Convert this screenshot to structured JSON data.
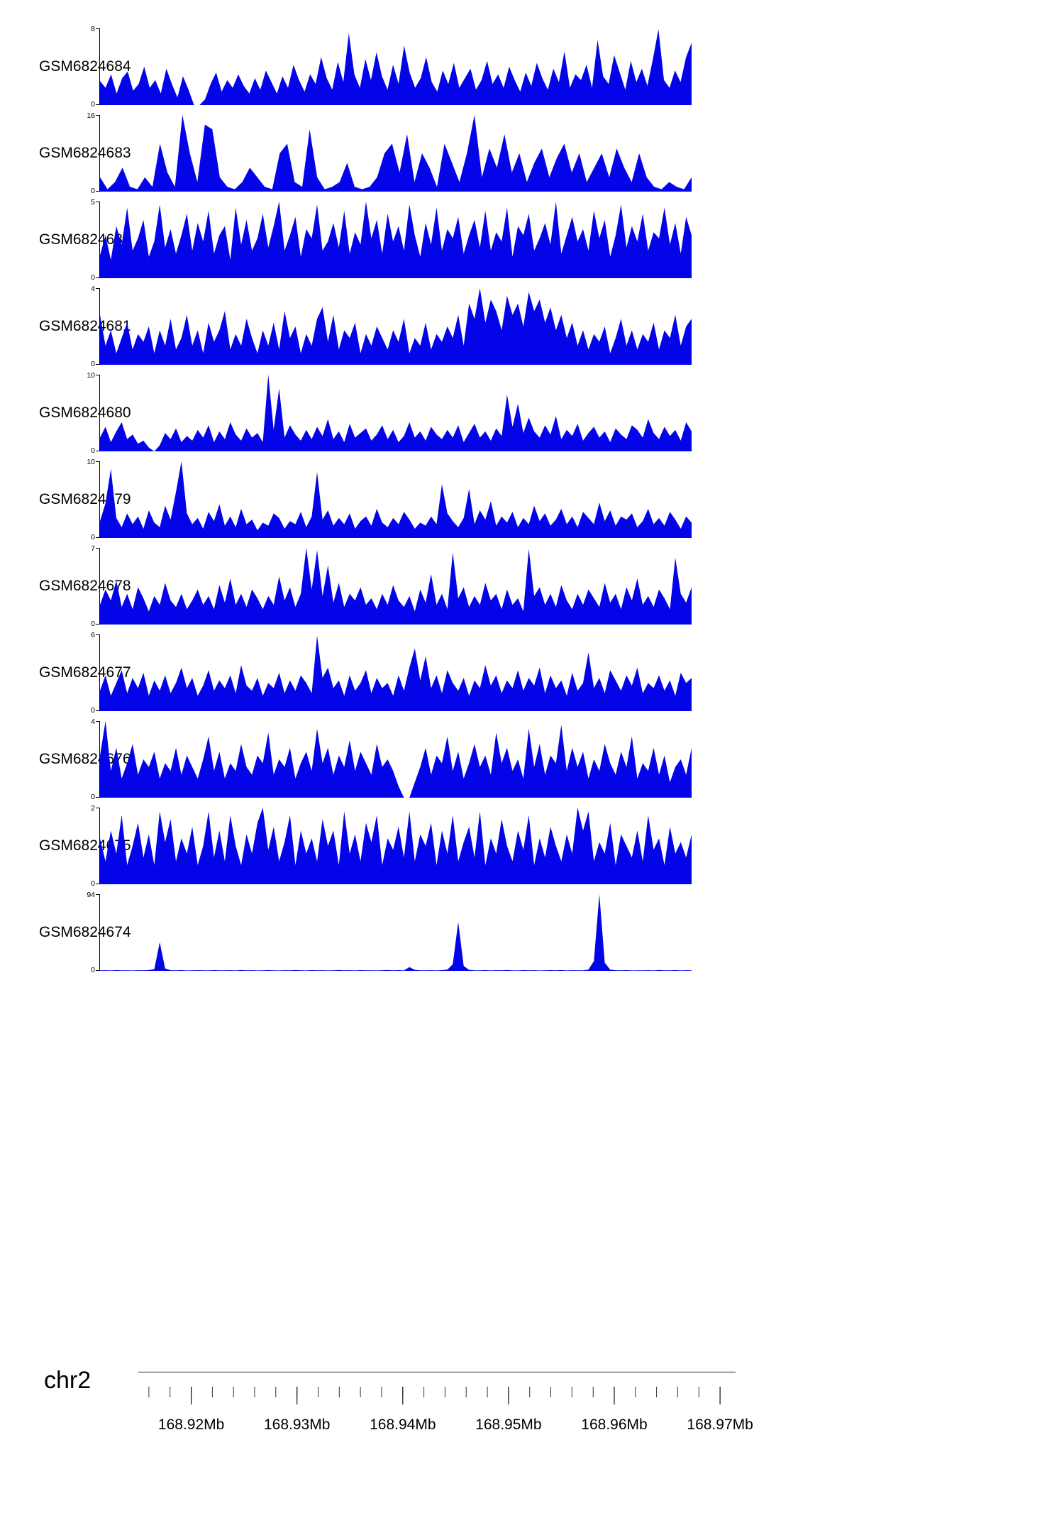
{
  "page": {
    "background": "#ffffff"
  },
  "chart_data": {
    "type": "area",
    "title": "",
    "fill_color": "#0404e8",
    "x_axis": {
      "chromosome": "chr2",
      "start_mb": 168.915,
      "end_mb": 168.971,
      "unit": "Mb",
      "ticks": [
        {
          "mb": 168.92,
          "label": "168.92Mb"
        },
        {
          "mb": 168.93,
          "label": "168.93Mb"
        },
        {
          "mb": 168.94,
          "label": "168.94Mb"
        },
        {
          "mb": 168.95,
          "label": "168.95Mb"
        },
        {
          "mb": 168.96,
          "label": "168.96Mb"
        },
        {
          "mb": 168.97,
          "label": "168.97Mb"
        }
      ],
      "minor_ticks": {
        "start_mb": 168.916,
        "end_mb": 168.97,
        "step_mb": 0.002
      }
    },
    "tracks": [
      {
        "label": "GSM6824684",
        "ymin": 0,
        "ymax": 8,
        "values": [
          2.5,
          1.8,
          3.2,
          1.2,
          2.8,
          3.5,
          1.5,
          2.2,
          4,
          1.8,
          2.6,
          1.2,
          3.8,
          2.2,
          0.8,
          3,
          1.6,
          0,
          0,
          0.6,
          2.2,
          3.4,
          1.4,
          2.6,
          1.8,
          3.2,
          2,
          1.2,
          2.8,
          1.6,
          3.6,
          2.4,
          1.2,
          3,
          1.8,
          4.2,
          2.6,
          1.4,
          3.2,
          2.2,
          5,
          2.8,
          1.6,
          4.5,
          2.4,
          7.5,
          3.2,
          1.8,
          4.8,
          2.6,
          5.5,
          3,
          1.6,
          4.2,
          2.2,
          6.2,
          3.4,
          1.8,
          2.8,
          5,
          2.4,
          1.4,
          3.6,
          2.2,
          4.4,
          1.8,
          2.8,
          3.8,
          1.6,
          2.6,
          4.6,
          2.2,
          3.2,
          1.8,
          4,
          2.6,
          1.4,
          3.4,
          2,
          4.4,
          2.8,
          1.6,
          3.8,
          2.4,
          5.6,
          1.8,
          3.2,
          2.6,
          4.2,
          1.8,
          6.8,
          3,
          2.2,
          5.2,
          3.4,
          1.6,
          4.6,
          2.4,
          3.8,
          2,
          4.8,
          7.9,
          2.6,
          1.8,
          3.6,
          2.4,
          5,
          6.5
        ]
      },
      {
        "label": "GSM6824683",
        "ymin": 0,
        "ymax": 16,
        "values": [
          3,
          0.5,
          2,
          5,
          1,
          0.5,
          3,
          1,
          10,
          4,
          1,
          16,
          8,
          2,
          14,
          13,
          3,
          1,
          0.5,
          2,
          5,
          3,
          1,
          0.5,
          8,
          10,
          2,
          1,
          13,
          3,
          0.5,
          1,
          2,
          6,
          1,
          0.5,
          1,
          3,
          8,
          10,
          4,
          12,
          2,
          8,
          5,
          1,
          10,
          6,
          2,
          8,
          16,
          3,
          9,
          5,
          12,
          4,
          8,
          2,
          6,
          9,
          3,
          7,
          10,
          4,
          8,
          2,
          5,
          8,
          3,
          9,
          5,
          2,
          8,
          3,
          1,
          0.5,
          2,
          1,
          0.5,
          3
        ]
      },
      {
        "label": "GSM6824682",
        "ymin": 0,
        "ymax": 5,
        "values": [
          1.5,
          2.8,
          1.2,
          3.4,
          2.2,
          4.6,
          1.8,
          2.6,
          3.8,
          1.4,
          2.4,
          4.8,
          2,
          3.2,
          1.6,
          2.8,
          4.2,
          1.8,
          3.6,
          2.4,
          4.4,
          1.6,
          2.8,
          3.4,
          1.2,
          4.6,
          2.2,
          3.8,
          1.8,
          2.6,
          4.2,
          2,
          3.4,
          5,
          1.8,
          2.8,
          4,
          1.4,
          3.2,
          2.6,
          4.8,
          1.8,
          2.4,
          3.6,
          2,
          4.4,
          1.6,
          3,
          2.2,
          5,
          2.6,
          3.8,
          1.6,
          4.2,
          2.4,
          3.4,
          1.8,
          4.8,
          2.8,
          1.4,
          3.6,
          2.2,
          4.6,
          1.8,
          3.2,
          2.6,
          4,
          1.6,
          2.8,
          3.8,
          2,
          4.4,
          1.8,
          3,
          2.4,
          4.6,
          1.4,
          3.4,
          2.8,
          4.2,
          1.8,
          2.6,
          3.6,
          2.2,
          5,
          1.6,
          2.8,
          4,
          2.4,
          3.2,
          1.8,
          4.4,
          2.6,
          3.8,
          1.4,
          2.8,
          4.8,
          2,
          3.4,
          2.4,
          4.2,
          1.8,
          3,
          2.6,
          4.6,
          2.2,
          3.6,
          1.6,
          4,
          2.8
        ]
      },
      {
        "label": "GSM6824681",
        "ymin": 0,
        "ymax": 4,
        "values": [
          2.6,
          1,
          1.8,
          0.6,
          1.4,
          2.2,
          0.8,
          1.6,
          1.2,
          2,
          0.6,
          1.8,
          1,
          2.4,
          0.8,
          1.4,
          2.6,
          1,
          1.8,
          0.6,
          2.2,
          1.2,
          1.8,
          2.8,
          0.8,
          1.6,
          1,
          2.4,
          1.4,
          0.6,
          1.8,
          1,
          2.2,
          0.8,
          2.8,
          1.4,
          2,
          0.6,
          1.6,
          1,
          2.4,
          3,
          1.2,
          2.6,
          0.8,
          1.8,
          1.4,
          2.2,
          0.6,
          1.6,
          1,
          2,
          1.4,
          0.8,
          1.8,
          1.2,
          2.4,
          0.6,
          1.4,
          1,
          2.2,
          0.8,
          1.6,
          1.2,
          2,
          1.4,
          2.6,
          1,
          3.2,
          2.4,
          4,
          2.2,
          3.4,
          2.8,
          1.8,
          3.6,
          2.6,
          3.2,
          2,
          3.8,
          2.8,
          3.4,
          2.2,
          3,
          1.8,
          2.6,
          1.4,
          2.2,
          1,
          1.8,
          0.8,
          1.6,
          1.2,
          2,
          0.6,
          1.4,
          2.4,
          1,
          1.8,
          0.8,
          1.6,
          1.2,
          2.2,
          0.8,
          1.8,
          1.4,
          2.6,
          1,
          2,
          2.4
        ]
      },
      {
        "label": "GSM6824680",
        "ymin": 0,
        "ymax": 10,
        "values": [
          1.8,
          3.2,
          1.2,
          2.6,
          3.8,
          1.6,
          2.2,
          1,
          1.4,
          0.5,
          0,
          0.8,
          2.4,
          1.6,
          3,
          1.2,
          2,
          1.4,
          2.8,
          1.8,
          3.4,
          1.2,
          2.6,
          1.6,
          3.8,
          2.2,
          1.4,
          3,
          1.8,
          2.4,
          1.2,
          10,
          2.8,
          8.2,
          1.8,
          3.4,
          2.2,
          1.4,
          2.8,
          1.6,
          3.2,
          2,
          4.2,
          1.6,
          2.6,
          1.2,
          3.6,
          1.8,
          2.4,
          3,
          1.4,
          2.2,
          3.4,
          1.6,
          2.8,
          1.2,
          2,
          3.8,
          1.8,
          2.6,
          1.4,
          3.2,
          2.2,
          1.6,
          2.8,
          1.8,
          3.4,
          1.2,
          2.4,
          3.6,
          1.8,
          2.6,
          1.4,
          3,
          2,
          7.4,
          3.2,
          6.2,
          2.4,
          4.4,
          2.6,
          1.8,
          3.4,
          2.2,
          4.6,
          1.6,
          2.8,
          2,
          3.6,
          1.4,
          2.4,
          3.2,
          1.8,
          2.6,
          1.2,
          3,
          2.2,
          1.6,
          3.4,
          2.8,
          1.8,
          4.2,
          2.4,
          1.6,
          3.2,
          2,
          2.8,
          1.4,
          3.8,
          2.6
        ]
      },
      {
        "label": "GSM6824679",
        "ymin": 0,
        "ymax": 10,
        "values": [
          2.2,
          4.5,
          9,
          2.6,
          1.4,
          3.2,
          1.8,
          2.8,
          1.2,
          3.6,
          2,
          1.4,
          4.2,
          2.4,
          6,
          10,
          3.2,
          1.8,
          2.6,
          1.2,
          3.4,
          2.2,
          4.4,
          1.6,
          2.8,
          1.4,
          3.8,
          1.8,
          2.4,
          1,
          2,
          1.6,
          3.2,
          2.6,
          1.2,
          2.2,
          1.8,
          3.4,
          1.4,
          2.8,
          8.6,
          2.4,
          3.6,
          1.6,
          2.6,
          1.8,
          3.2,
          1.2,
          2.2,
          2.8,
          1.6,
          3.8,
          2,
          1.4,
          2.6,
          1.8,
          3.4,
          2.4,
          1.2,
          2,
          1.6,
          2.8,
          1.8,
          7,
          3.2,
          2.2,
          1.4,
          2.6,
          6.4,
          1.8,
          3.6,
          2.4,
          4.8,
          1.6,
          2.8,
          2,
          3.4,
          1.4,
          2.6,
          1.8,
          4.2,
          2.2,
          3.2,
          1.6,
          2.4,
          3.8,
          1.8,
          2.8,
          1.4,
          3.4,
          2.6,
          1.8,
          4.6,
          2.2,
          3.6,
          1.6,
          2.8,
          2.4,
          3.2,
          1.4,
          2.2,
          3.8,
          1.8,
          2.6,
          1.6,
          3.4,
          2.4,
          1.2,
          2.8,
          2
        ]
      },
      {
        "label": "GSM6824678",
        "ymin": 0,
        "ymax": 7,
        "values": [
          1.8,
          3.2,
          2.2,
          4,
          1.6,
          2.8,
          1.4,
          3.4,
          2.4,
          1.2,
          2.6,
          1.8,
          3.8,
          2.2,
          1.6,
          2.8,
          1.4,
          2.2,
          3.2,
          1.8,
          2.6,
          1.4,
          3.6,
          2,
          4.2,
          1.8,
          2.8,
          1.6,
          3.2,
          2.4,
          1.4,
          2.6,
          1.8,
          4.4,
          2.2,
          3.4,
          1.6,
          2.8,
          7,
          3.2,
          6.8,
          2.6,
          5.4,
          2,
          3.8,
          1.6,
          2.8,
          2.2,
          3.4,
          1.8,
          2.4,
          1.4,
          2.8,
          1.8,
          3.6,
          2.2,
          1.6,
          2.6,
          1.2,
          3.2,
          2,
          4.6,
          1.8,
          2.8,
          1.4,
          6.6,
          2.4,
          3.4,
          1.6,
          2.6,
          1.8,
          3.8,
          2.2,
          2.8,
          1.4,
          3.2,
          1.8,
          2.4,
          1.2,
          6.9,
          2.6,
          3.4,
          1.8,
          2.8,
          1.6,
          3.6,
          2.2,
          1.4,
          2.8,
          1.8,
          3.2,
          2.4,
          1.6,
          3.8,
          2,
          2.8,
          1.4,
          3.4,
          2.2,
          4.2,
          1.8,
          2.6,
          1.6,
          3.2,
          2.4,
          1.4,
          6.1,
          2.8,
          2,
          3.4
        ]
      },
      {
        "label": "GSM6824677",
        "ymin": 0,
        "ymax": 6,
        "values": [
          1.6,
          2.8,
          1.2,
          2.2,
          3.2,
          1.4,
          2.6,
          1.8,
          3,
          1.2,
          2.4,
          1.6,
          2.8,
          1.4,
          2.2,
          3.4,
          1.8,
          2.6,
          1.2,
          2,
          3.2,
          1.6,
          2.4,
          1.8,
          2.8,
          1.4,
          3.6,
          2,
          1.6,
          2.6,
          1.2,
          2.2,
          1.8,
          3,
          1.4,
          2.4,
          1.6,
          2.8,
          2.2,
          1.4,
          5.9,
          2.6,
          3.4,
          1.8,
          2.4,
          1.2,
          2.8,
          1.6,
          2.2,
          3.2,
          1.4,
          2.6,
          1.8,
          2.2,
          1.2,
          2.8,
          1.6,
          3.4,
          4.9,
          2.4,
          4.3,
          1.8,
          2.8,
          1.4,
          3.2,
          2.2,
          1.6,
          2.6,
          1.2,
          2.4,
          1.8,
          3.6,
          2,
          2.8,
          1.4,
          2.4,
          1.8,
          3.2,
          1.6,
          2.6,
          2,
          3.4,
          1.4,
          2.8,
          1.8,
          2.4,
          1.2,
          3,
          1.6,
          2.2,
          4.6,
          1.8,
          2.6,
          1.4,
          3.2,
          2.4,
          1.6,
          2.8,
          2,
          3.4,
          1.4,
          2.2,
          1.8,
          2.8,
          1.6,
          2.4,
          1.2,
          3,
          2.2,
          2.6
        ]
      },
      {
        "label": "GSM6824676",
        "ymin": 0,
        "ymax": 4,
        "values": [
          2.2,
          4,
          1.4,
          2.6,
          1,
          1.8,
          2.8,
          1.2,
          2,
          1.6,
          2.4,
          1,
          1.8,
          1.4,
          2.6,
          1.2,
          2.2,
          1.6,
          1,
          2,
          3.2,
          1.4,
          2.4,
          1,
          1.8,
          1.4,
          2.8,
          1.6,
          1.2,
          2.2,
          1.8,
          3.4,
          1.2,
          2,
          1.6,
          2.6,
          1,
          1.8,
          2.4,
          1.4,
          3.6,
          1.8,
          2.6,
          1.2,
          2.2,
          1.6,
          3,
          1.4,
          2.4,
          1.8,
          1.2,
          2.8,
          1.6,
          2,
          1.4,
          0.6,
          0,
          0,
          0.8,
          1.6,
          2.6,
          1.2,
          2.2,
          1.8,
          3.2,
          1.4,
          2.4,
          1,
          1.8,
          2.8,
          1.6,
          2.2,
          1.2,
          3.4,
          1.8,
          2.6,
          1.4,
          2,
          1,
          3.6,
          1.6,
          2.8,
          1.2,
          2.2,
          1.8,
          3.8,
          1.4,
          2.6,
          1.6,
          2.4,
          1,
          2,
          1.4,
          2.8,
          1.8,
          1.2,
          2.4,
          1.6,
          3.2,
          1,
          1.8,
          1.4,
          2.6,
          1.2,
          2.2,
          0.8,
          1.6,
          2,
          1.2,
          2.6
        ]
      },
      {
        "label": "GSM6824675",
        "ymin": 0,
        "ymax": 2,
        "values": [
          1.2,
          0.6,
          1.4,
          0.8,
          1.8,
          0.5,
          1,
          1.6,
          0.7,
          1.3,
          0.5,
          1.9,
          1.1,
          1.7,
          0.6,
          1.2,
          0.8,
          1.5,
          0.5,
          1,
          1.9,
          0.7,
          1.4,
          0.6,
          1.8,
          1,
          0.5,
          1.3,
          0.8,
          1.6,
          2,
          0.9,
          1.5,
          0.6,
          1.1,
          1.8,
          0.5,
          1.4,
          0.8,
          1.2,
          0.6,
          1.7,
          1,
          1.4,
          0.5,
          1.9,
          0.8,
          1.3,
          0.6,
          1.6,
          1.1,
          1.8,
          0.5,
          1.2,
          0.9,
          1.5,
          0.7,
          1.9,
          0.6,
          1.3,
          1,
          1.6,
          0.5,
          1.4,
          0.8,
          1.8,
          0.6,
          1.1,
          1.5,
          0.7,
          1.9,
          0.5,
          1.2,
          0.8,
          1.7,
          1,
          0.6,
          1.4,
          0.9,
          1.8,
          0.5,
          1.2,
          0.7,
          1.5,
          1,
          0.6,
          1.3,
          0.8,
          2,
          1.4,
          1.9,
          0.6,
          1.1,
          0.8,
          1.6,
          0.5,
          1.3,
          1,
          0.7,
          1.4,
          0.6,
          1.8,
          0.9,
          1.2,
          0.5,
          1.5,
          0.8,
          1.1,
          0.7,
          1.3
        ]
      },
      {
        "label": "GSM6824674",
        "ymin": 0,
        "ymax": 94,
        "values": [
          0.6,
          0.8,
          0.5,
          0.9,
          0.6,
          0.7,
          0.5,
          0.8,
          0.6,
          1,
          2,
          35,
          3,
          0.8,
          0.6,
          0.9,
          0.5,
          0.7,
          0.8,
          0.6,
          0.5,
          0.9,
          0.7,
          0.6,
          0.8,
          0.5,
          1,
          0.6,
          0.8,
          0.5,
          0.7,
          0.9,
          0.6,
          0.5,
          0.8,
          0.6,
          1,
          0.7,
          0.5,
          0.9,
          0.6,
          0.8,
          0.5,
          0.7,
          1,
          0.6,
          0.8,
          0.5,
          0.9,
          0.6,
          0.7,
          0.5,
          0.8,
          1,
          0.6,
          0.9,
          0.5,
          4.5,
          1.2,
          0.7,
          0.6,
          0.8,
          0.5,
          0.9,
          1.5,
          8,
          60,
          6,
          1.2,
          0.7,
          0.6,
          0.9,
          0.5,
          0.8,
          0.6,
          1,
          0.7,
          0.5,
          0.9,
          0.6,
          0.8,
          0.5,
          0.7,
          0.9,
          0.6,
          1,
          0.5,
          0.8,
          0.6,
          0.7,
          1.5,
          12,
          94,
          10,
          1.5,
          0.8,
          0.6,
          0.9,
          0.5,
          0.7,
          0.6,
          0.8,
          0.5,
          1,
          0.7,
          0.6,
          0.9,
          0.5,
          0.8,
          0.6
        ]
      }
    ]
  }
}
